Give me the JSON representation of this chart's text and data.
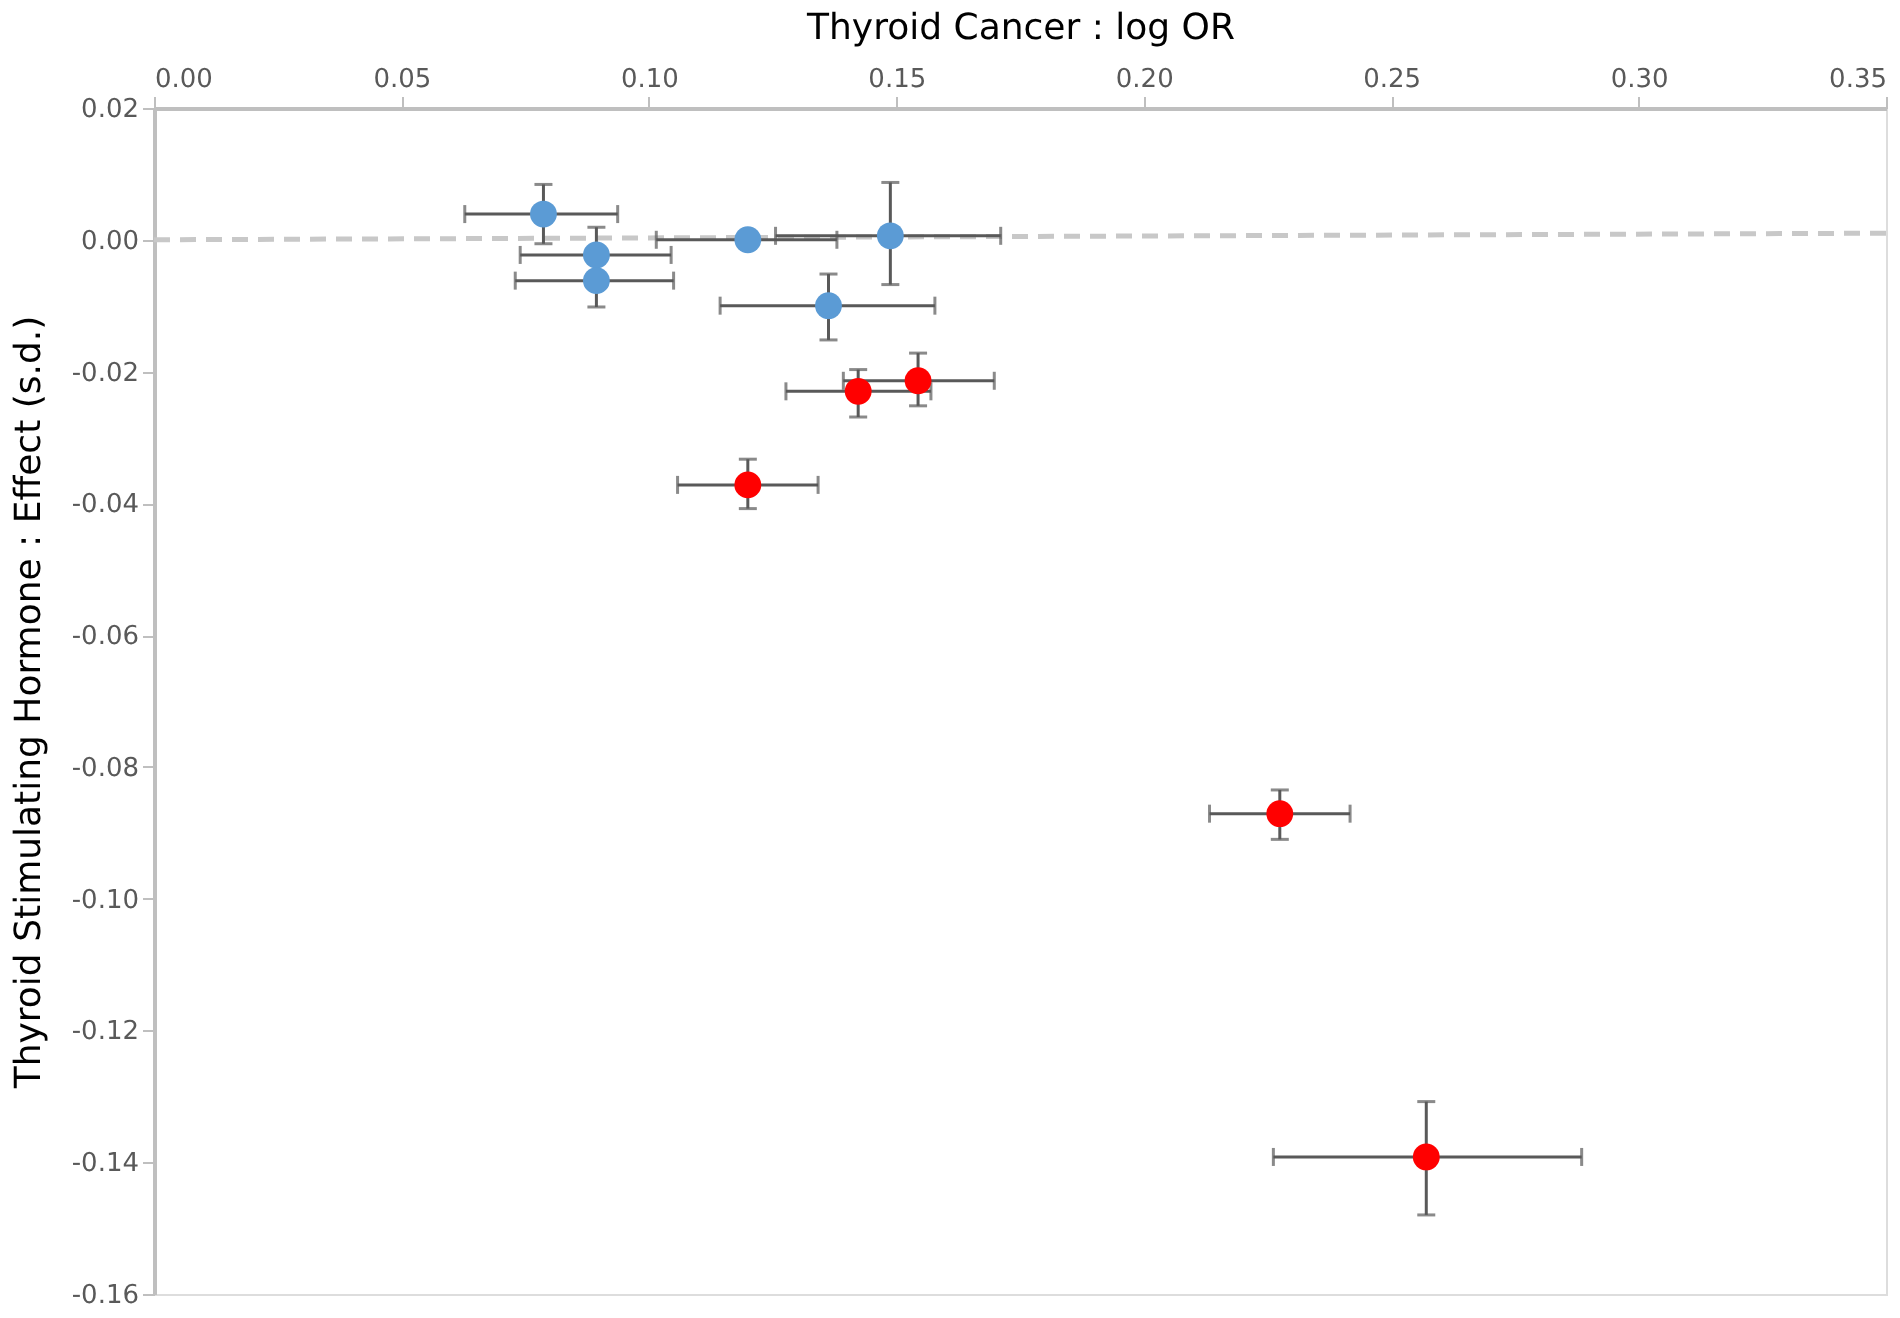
{
  "chart_data": {
    "type": "scatter",
    "xlabel": "Thyroid Cancer : log OR",
    "ylabel": "Thyroid Stimulating Hormone : Effect (s.d.)",
    "xlim": [
      0,
      0.35
    ],
    "xticks": [
      {
        "value": 0,
        "label": "0.00"
      },
      0.05,
      {
        "value": 0.1,
        "label": "0.10"
      },
      0.15,
      {
        "value": 0.2,
        "label": "0.20"
      },
      0.25,
      {
        "value": 0.3,
        "label": "0.30"
      },
      0.35
    ],
    "ylim": [
      -0.16,
      0.02
    ],
    "yticks": [
      0.02,
      {
        "value": 0,
        "label": "0.00"
      },
      -0.02,
      -0.04,
      -0.06,
      -0.08,
      {
        "value": -0.1,
        "label": "-0.10"
      },
      -0.12,
      -0.14,
      -0.16
    ],
    "grid": false,
    "marker": "circle",
    "series": [
      {
        "type": "line",
        "color": "#c8c8c8",
        "line_style": "dashed",
        "marker": "none",
        "x": [
          0,
          0.35
        ],
        "values": [
          0,
          0.001
        ]
      },
      {
        "color": "#5b9bd5",
        "x": [
          0.0787,
          0.0894,
          0.0894,
          0.12,
          0.1488,
          0.1363
        ],
        "values": [
          0.0039,
          -0.0023,
          -0.0062,
          0.0,
          0.0006,
          -0.01
        ],
        "xerrors": [
          [
            0.0628,
            0.0937
          ],
          [
            0.074,
            0.1045
          ],
          [
            0.073,
            0.105
          ],
          [
            0.1015,
            0.138
          ],
          [
            0.1256,
            0.1711
          ],
          [
            0.1144,
            0.1578
          ]
        ],
        "errors": [
          [
            -0.0006,
            0.0084
          ],
          [
            -0.0023,
            0.0019
          ],
          [
            -0.0102,
            -0.0062
          ],
          null,
          [
            -0.0068,
            0.0087
          ],
          [
            -0.0152,
            -0.0052
          ]
        ]
      },
      {
        "color": "#ff0000",
        "x": [
          0.1423,
          0.1544,
          0.12,
          0.2275,
          0.2571
        ],
        "values": [
          -0.023,
          -0.0214,
          -0.0372,
          -0.0871,
          -0.1392
        ],
        "xerrors": [
          [
            0.1277,
            0.157
          ],
          [
            0.1393,
            0.1698
          ],
          [
            0.1058,
            0.1342
          ],
          [
            0.2133,
            0.2417
          ],
          [
            0.2262,
            0.2885
          ]
        ],
        "errors": [
          [
            -0.0269,
            -0.0197
          ],
          [
            -0.0252,
            -0.0172
          ],
          [
            -0.0408,
            -0.0333
          ],
          [
            -0.091,
            -0.0835
          ],
          [
            -0.148,
            -0.1308
          ]
        ]
      }
    ]
  }
}
